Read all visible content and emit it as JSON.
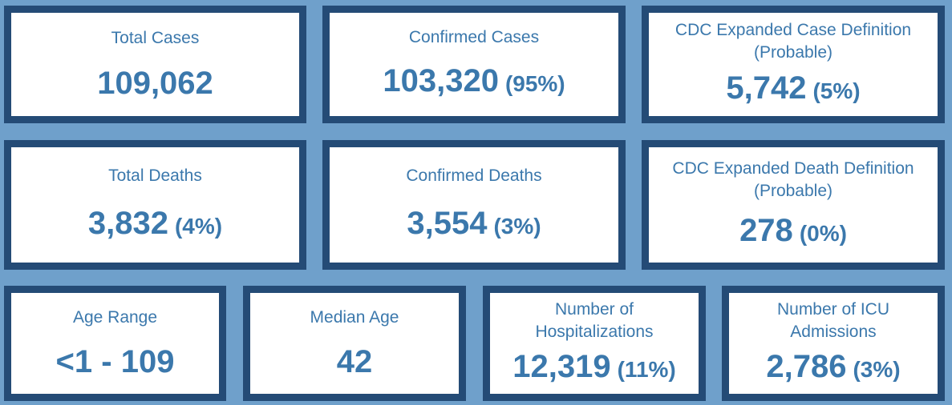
{
  "colors": {
    "background": "#6fa0cb",
    "card_border": "#244b76",
    "card_fill": "#ffffff",
    "text": "#3b78ac"
  },
  "cards": {
    "total_cases": {
      "label": "Total Cases",
      "value": "109,062"
    },
    "confirmed_cases": {
      "label": "Confirmed Cases",
      "value": "103,320",
      "percent": "(95%)"
    },
    "probable_cases": {
      "label_line1": "CDC Expanded Case Definition",
      "label_line2": "(Probable)",
      "value": "5,742",
      "percent": "(5%)"
    },
    "total_deaths": {
      "label": "Total Deaths",
      "value": "3,832",
      "percent": "(4%)"
    },
    "confirmed_deaths": {
      "label": "Confirmed Deaths",
      "value": "3,554",
      "percent": "(3%)"
    },
    "probable_deaths": {
      "label_line1": "CDC Expanded Death Definition",
      "label_line2": "(Probable)",
      "value": "278",
      "percent": "(0%)"
    },
    "age_range": {
      "label": "Age Range",
      "value": "<1 - 109"
    },
    "median_age": {
      "label": "Median Age",
      "value": "42"
    },
    "hospitalizations": {
      "label_line1": "Number of",
      "label_line2": "Hospitalizations",
      "value": "12,319",
      "percent": "(11%)"
    },
    "icu_admissions": {
      "label_line1": "Number of ICU",
      "label_line2": "Admissions",
      "value": "2,786",
      "percent": "(3%)"
    }
  }
}
